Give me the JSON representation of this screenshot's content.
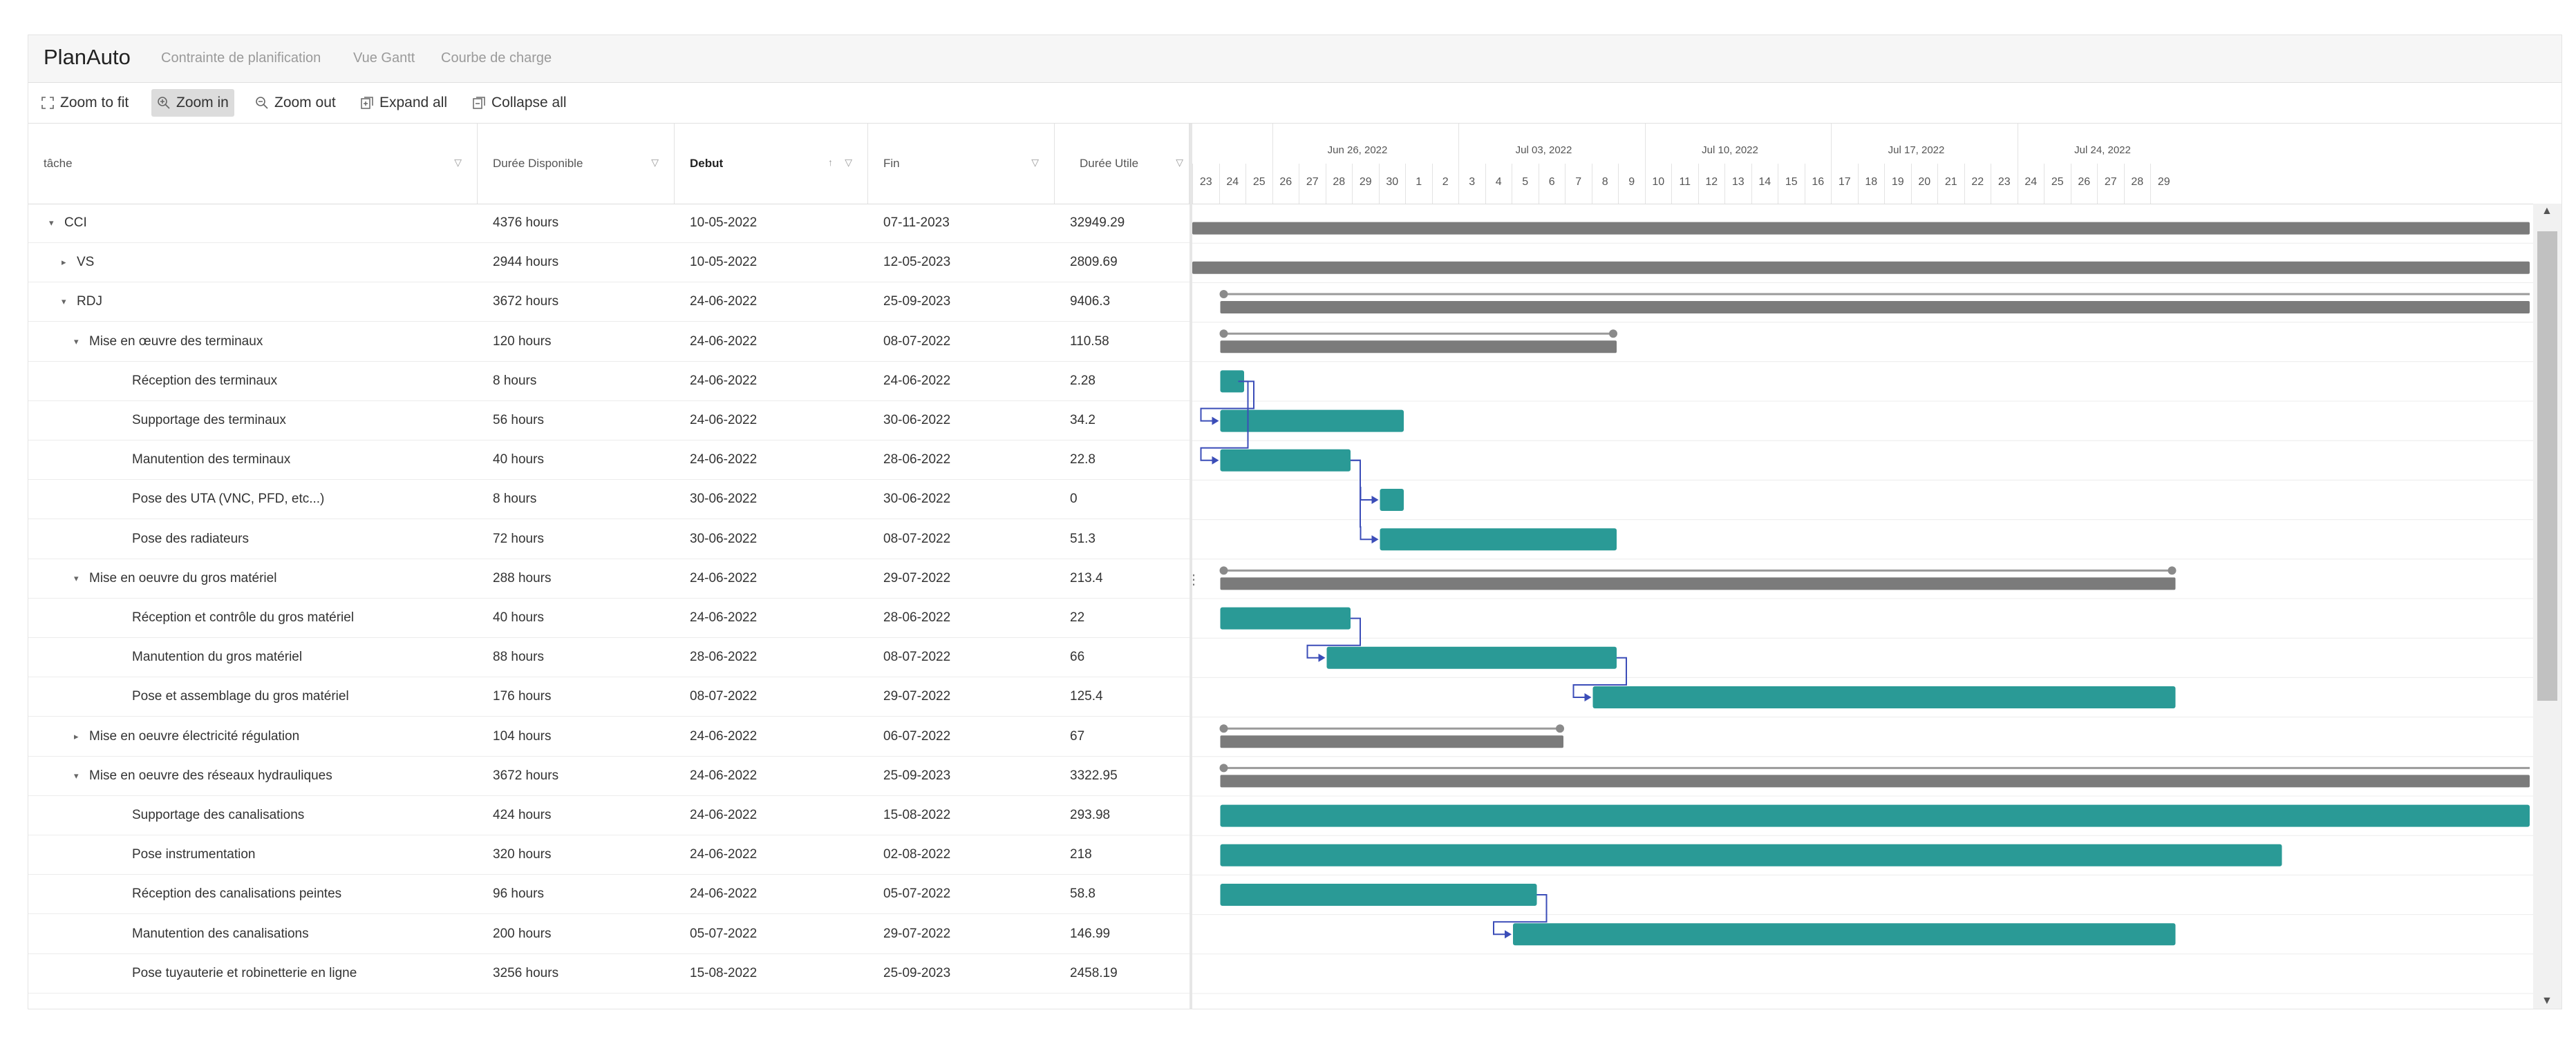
{
  "app": {
    "brand": "PlanAuto",
    "nav": [
      "Contrainte de planification",
      "Vue Gantt",
      "Courbe de charge"
    ]
  },
  "toolbar": {
    "zoom_to_fit": "Zoom to fit",
    "zoom_in": "Zoom in",
    "zoom_out": "Zoom out",
    "expand_all": "Expand all",
    "collapse_all": "Collapse all"
  },
  "columns": [
    "tâche",
    "Durée Disponible",
    "Debut",
    "Fin",
    "Durée Utile"
  ],
  "rows": [
    {
      "name": "CCI",
      "dispo": "4376 hours",
      "debut": "10-05-2022",
      "fin": "07-11-2023",
      "utile": "32949.29",
      "level": 0,
      "toggle": "▾"
    },
    {
      "name": "VS",
      "dispo": "2944 hours",
      "debut": "10-05-2022",
      "fin": "12-05-2023",
      "utile": "2809.69",
      "level": 1,
      "toggle": "▸"
    },
    {
      "name": "RDJ",
      "dispo": "3672 hours",
      "debut": "24-06-2022",
      "fin": "25-09-2023",
      "utile": "9406.3",
      "level": 1,
      "toggle": "▾"
    },
    {
      "name": "Mise en œuvre des terminaux",
      "dispo": "120 hours",
      "debut": "24-06-2022",
      "fin": "08-07-2022",
      "utile": "110.58",
      "level": 2,
      "toggle": "▾"
    },
    {
      "name": "Réception des terminaux",
      "dispo": "8 hours",
      "debut": "24-06-2022",
      "fin": "24-06-2022",
      "utile": "2.28",
      "level": 3,
      "toggle": ""
    },
    {
      "name": "Supportage des terminaux",
      "dispo": "56 hours",
      "debut": "24-06-2022",
      "fin": "30-06-2022",
      "utile": "34.2",
      "level": 3,
      "toggle": ""
    },
    {
      "name": "Manutention des terminaux",
      "dispo": "40 hours",
      "debut": "24-06-2022",
      "fin": "28-06-2022",
      "utile": "22.8",
      "level": 3,
      "toggle": ""
    },
    {
      "name": "Pose des UTA (VNC, PFD, etc...)",
      "dispo": "8 hours",
      "debut": "30-06-2022",
      "fin": "30-06-2022",
      "utile": "0",
      "level": 3,
      "toggle": ""
    },
    {
      "name": "Pose des radiateurs",
      "dispo": "72 hours",
      "debut": "30-06-2022",
      "fin": "08-07-2022",
      "utile": "51.3",
      "level": 3,
      "toggle": ""
    },
    {
      "name": "Mise en oeuvre du gros matériel",
      "dispo": "288 hours",
      "debut": "24-06-2022",
      "fin": "29-07-2022",
      "utile": "213.4",
      "level": 2,
      "toggle": "▾"
    },
    {
      "name": "Réception et contrôle du gros matériel",
      "dispo": "40 hours",
      "debut": "24-06-2022",
      "fin": "28-06-2022",
      "utile": "22",
      "level": 3,
      "toggle": ""
    },
    {
      "name": "Manutention du gros matériel",
      "dispo": "88 hours",
      "debut": "28-06-2022",
      "fin": "08-07-2022",
      "utile": "66",
      "level": 3,
      "toggle": ""
    },
    {
      "name": "Pose et assemblage du gros matériel",
      "dispo": "176 hours",
      "debut": "08-07-2022",
      "fin": "29-07-2022",
      "utile": "125.4",
      "level": 3,
      "toggle": ""
    },
    {
      "name": "Mise en oeuvre électricité régulation",
      "dispo": "104 hours",
      "debut": "24-06-2022",
      "fin": "06-07-2022",
      "utile": "67",
      "level": 2,
      "toggle": "▸"
    },
    {
      "name": "Mise en oeuvre des réseaux hydrauliques",
      "dispo": "3672 hours",
      "debut": "24-06-2022",
      "fin": "25-09-2023",
      "utile": "3322.95",
      "level": 2,
      "toggle": "▾"
    },
    {
      "name": "Supportage des canalisations",
      "dispo": "424 hours",
      "debut": "24-06-2022",
      "fin": "15-08-2022",
      "utile": "293.98",
      "level": 3,
      "toggle": ""
    },
    {
      "name": "Pose instrumentation",
      "dispo": "320 hours",
      "debut": "24-06-2022",
      "fin": "02-08-2022",
      "utile": "218",
      "level": 3,
      "toggle": ""
    },
    {
      "name": "Réception des canalisations peintes",
      "dispo": "96 hours",
      "debut": "24-06-2022",
      "fin": "05-07-2022",
      "utile": "58.8",
      "level": 3,
      "toggle": ""
    },
    {
      "name": "Manutention des canalisations",
      "dispo": "200 hours",
      "debut": "05-07-2022",
      "fin": "29-07-2022",
      "utile": "146.99",
      "level": 3,
      "toggle": ""
    },
    {
      "name": "Pose tuyauterie et robinetterie en ligne",
      "dispo": "3256 hours",
      "debut": "15-08-2022",
      "fin": "25-09-2023",
      "utile": "2458.19",
      "level": 3,
      "toggle": ""
    }
  ],
  "timeline": {
    "weeks": [
      "Jun 26, 2022",
      "Jul 03, 2022",
      "Jul 10, 2022",
      "Jul 17, 2022",
      "Jul 24, 2022"
    ],
    "days": [
      "23",
      "24",
      "25",
      "26",
      "27",
      "28",
      "29",
      "30",
      "1",
      "2",
      "3",
      "4",
      "5",
      "6",
      "7",
      "8",
      "9",
      "10",
      "11",
      "12",
      "13",
      "14",
      "15",
      "16",
      "17",
      "18",
      "19",
      "20",
      "21",
      "22",
      "23",
      "24",
      "25",
      "26",
      "27",
      "28",
      "29"
    ]
  },
  "colors": {
    "task": "#2a9a96",
    "summary": "#7b7b7b",
    "link": "#3b4db8"
  }
}
